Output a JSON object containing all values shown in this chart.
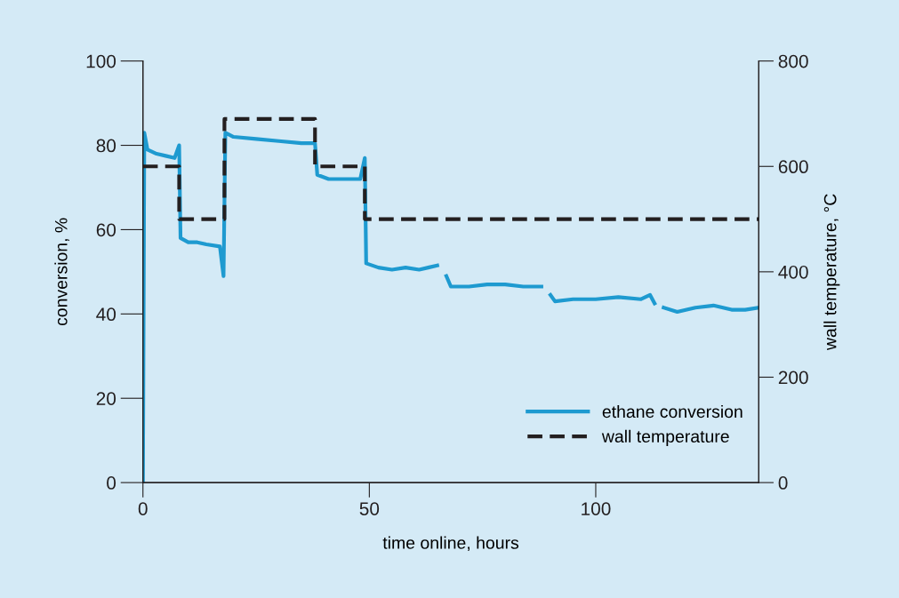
{
  "chart_data": {
    "type": "line",
    "xlabel": "time online, hours",
    "ylabel": "conversion, %",
    "y2label": "wall temperature, °C",
    "xlim": [
      0,
      136
    ],
    "xticks": [
      0,
      50,
      100
    ],
    "ylim": [
      0,
      100
    ],
    "yticks": [
      0,
      20,
      40,
      60,
      80,
      100
    ],
    "y2lim": [
      0,
      800
    ],
    "y2ticks": [
      0,
      200,
      400,
      600,
      800
    ],
    "grid": false,
    "legend": "bottom right",
    "series": [
      {
        "name": "ethane conversion",
        "color": "#1e9ad0",
        "line_style": "solid",
        "x": [
          0,
          0.3,
          1,
          3,
          5,
          7,
          8,
          8.3,
          10,
          12,
          14,
          17,
          17.8,
          18.2,
          20,
          25,
          30,
          35,
          38,
          38.5,
          41,
          45,
          48,
          49,
          49.3,
          52,
          55,
          58,
          61,
          63,
          65,
          66,
          67,
          68,
          72,
          76,
          80,
          84,
          88,
          89,
          90,
          91,
          95,
          100,
          105,
          110,
          112,
          113,
          114,
          115,
          118,
          122,
          126,
          130,
          133,
          136
        ],
        "values": [
          0,
          83,
          79,
          78,
          77.5,
          77,
          80,
          58,
          57,
          57,
          56.5,
          56,
          49,
          83,
          82,
          81.5,
          81,
          80.5,
          80.5,
          73,
          72,
          72,
          72,
          77,
          52,
          51,
          50.5,
          51,
          50.5,
          51,
          51.5,
          null,
          49,
          46.5,
          46.5,
          47,
          47,
          46.5,
          46.5,
          null,
          44.5,
          43,
          43.5,
          43.5,
          44,
          43.5,
          44.5,
          42.5,
          null,
          41.5,
          40.5,
          41.5,
          42,
          41,
          41,
          41.5
        ]
      },
      {
        "name": "wall temperature",
        "color": "#231f20",
        "type": "step",
        "axis": "y2",
        "line_style": "dashed",
        "x": [
          0,
          8,
          18,
          38,
          49,
          136
        ],
        "values": [
          600,
          500,
          690,
          600,
          500,
          500
        ]
      }
    ]
  }
}
